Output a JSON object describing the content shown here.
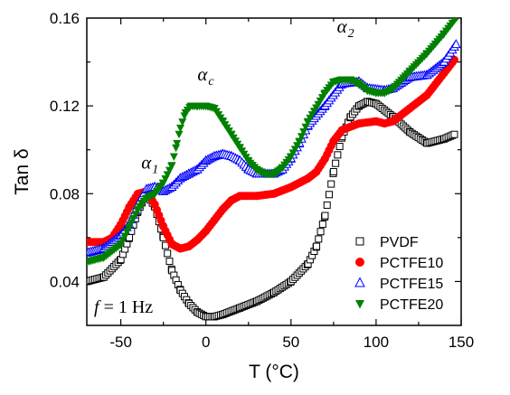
{
  "chart_data": {
    "type": "scatter",
    "xlabel": "T (°C)",
    "ylabel": "Tan δ",
    "xlim": [
      -70,
      150
    ],
    "ylim": [
      0.02,
      0.16
    ],
    "x_ticks": [
      -50,
      0,
      50,
      100,
      150
    ],
    "x_tick_labels": [
      "-50",
      "0",
      "50",
      "100",
      "150"
    ],
    "y_ticks": [
      0.04,
      0.08,
      0.12,
      0.16
    ],
    "y_tick_labels": [
      "0.04",
      "0.08",
      "0.12",
      "0.16"
    ],
    "legend_position": "bottom-right",
    "annotations": [
      {
        "text": "α",
        "sub": "1",
        "x": -38,
        "y": 0.0915
      },
      {
        "text": "α",
        "sub": "c",
        "x": -5,
        "y": 0.1315
      },
      {
        "text": "α",
        "sub": "2",
        "x": 77,
        "y": 0.1535
      }
    ],
    "frequency_label": {
      "f": "f",
      "rest": " = 1 Hz"
    },
    "series": [
      {
        "name": "PVDF",
        "marker": "open-square",
        "color": "#000000",
        "points": [
          [
            -70,
            0.04
          ],
          [
            -60,
            0.042
          ],
          [
            -50,
            0.05
          ],
          [
            -45,
            0.06
          ],
          [
            -40,
            0.072
          ],
          [
            -35,
            0.08
          ],
          [
            -30,
            0.074
          ],
          [
            -25,
            0.06
          ],
          [
            -20,
            0.045
          ],
          [
            -15,
            0.036
          ],
          [
            -10,
            0.03
          ],
          [
            -5,
            0.026
          ],
          [
            0,
            0.024
          ],
          [
            5,
            0.024
          ],
          [
            10,
            0.025
          ],
          [
            20,
            0.028
          ],
          [
            30,
            0.031
          ],
          [
            40,
            0.035
          ],
          [
            50,
            0.04
          ],
          [
            60,
            0.048
          ],
          [
            65,
            0.056
          ],
          [
            70,
            0.07
          ],
          [
            75,
            0.09
          ],
          [
            80,
            0.106
          ],
          [
            85,
            0.115
          ],
          [
            90,
            0.12
          ],
          [
            95,
            0.122
          ],
          [
            100,
            0.121
          ],
          [
            110,
            0.115
          ],
          [
            120,
            0.108
          ],
          [
            130,
            0.103
          ],
          [
            140,
            0.105
          ],
          [
            146,
            0.107
          ]
        ]
      },
      {
        "name": "PCTFE10",
        "marker": "filled-circle",
        "color": "#ff0000",
        "points": [
          [
            -70,
            0.058
          ],
          [
            -60,
            0.058
          ],
          [
            -55,
            0.06
          ],
          [
            -50,
            0.066
          ],
          [
            -45,
            0.074
          ],
          [
            -40,
            0.08
          ],
          [
            -35,
            0.081
          ],
          [
            -30,
            0.075
          ],
          [
            -25,
            0.065
          ],
          [
            -20,
            0.057
          ],
          [
            -15,
            0.055
          ],
          [
            -10,
            0.056
          ],
          [
            -5,
            0.059
          ],
          [
            0,
            0.063
          ],
          [
            5,
            0.068
          ],
          [
            10,
            0.073
          ],
          [
            15,
            0.077
          ],
          [
            20,
            0.079
          ],
          [
            30,
            0.079
          ],
          [
            40,
            0.08
          ],
          [
            50,
            0.083
          ],
          [
            60,
            0.087
          ],
          [
            65,
            0.09
          ],
          [
            70,
            0.096
          ],
          [
            75,
            0.104
          ],
          [
            80,
            0.109
          ],
          [
            90,
            0.112
          ],
          [
            100,
            0.113
          ],
          [
            105,
            0.112
          ],
          [
            110,
            0.113
          ],
          [
            120,
            0.119
          ],
          [
            130,
            0.125
          ],
          [
            140,
            0.135
          ],
          [
            146,
            0.141
          ]
        ]
      },
      {
        "name": "PCTFE15",
        "marker": "open-triangle",
        "color": "#0000ff",
        "points": [
          [
            -70,
            0.053
          ],
          [
            -60,
            0.055
          ],
          [
            -50,
            0.061
          ],
          [
            -45,
            0.066
          ],
          [
            -40,
            0.075
          ],
          [
            -35,
            0.082
          ],
          [
            -30,
            0.083
          ],
          [
            -25,
            0.081
          ],
          [
            -20,
            0.083
          ],
          [
            -15,
            0.087
          ],
          [
            -10,
            0.089
          ],
          [
            -5,
            0.091
          ],
          [
            0,
            0.095
          ],
          [
            5,
            0.097
          ],
          [
            10,
            0.098
          ],
          [
            15,
            0.097
          ],
          [
            20,
            0.095
          ],
          [
            25,
            0.091
          ],
          [
            30,
            0.089
          ],
          [
            40,
            0.089
          ],
          [
            45,
            0.091
          ],
          [
            50,
            0.096
          ],
          [
            55,
            0.103
          ],
          [
            60,
            0.111
          ],
          [
            70,
            0.12
          ],
          [
            80,
            0.13
          ],
          [
            90,
            0.131
          ],
          [
            95,
            0.128
          ],
          [
            105,
            0.127
          ],
          [
            110,
            0.128
          ],
          [
            120,
            0.133
          ],
          [
            130,
            0.134
          ],
          [
            140,
            0.14
          ],
          [
            147,
            0.148
          ]
        ]
      },
      {
        "name": "PCTFE20",
        "marker": "filled-triangle-down",
        "color": "#008000",
        "points": [
          [
            -70,
            0.049
          ],
          [
            -60,
            0.051
          ],
          [
            -50,
            0.057
          ],
          [
            -45,
            0.065
          ],
          [
            -40,
            0.073
          ],
          [
            -35,
            0.078
          ],
          [
            -30,
            0.08
          ],
          [
            -25,
            0.085
          ],
          [
            -20,
            0.093
          ],
          [
            -17,
            0.103
          ],
          [
            -15,
            0.11
          ],
          [
            -12,
            0.117
          ],
          [
            -9,
            0.12
          ],
          [
            -5,
            0.12
          ],
          [
            0,
            0.12
          ],
          [
            5,
            0.119
          ],
          [
            10,
            0.113
          ],
          [
            15,
            0.107
          ],
          [
            20,
            0.101
          ],
          [
            25,
            0.095
          ],
          [
            30,
            0.091
          ],
          [
            35,
            0.089
          ],
          [
            40,
            0.089
          ],
          [
            45,
            0.092
          ],
          [
            50,
            0.097
          ],
          [
            55,
            0.104
          ],
          [
            60,
            0.113
          ],
          [
            70,
            0.126
          ],
          [
            75,
            0.131
          ],
          [
            80,
            0.132
          ],
          [
            85,
            0.132
          ],
          [
            90,
            0.13
          ],
          [
            95,
            0.127
          ],
          [
            100,
            0.126
          ],
          [
            105,
            0.126
          ],
          [
            110,
            0.128
          ],
          [
            120,
            0.136
          ],
          [
            130,
            0.144
          ],
          [
            140,
            0.153
          ],
          [
            148,
            0.161
          ]
        ]
      }
    ]
  }
}
